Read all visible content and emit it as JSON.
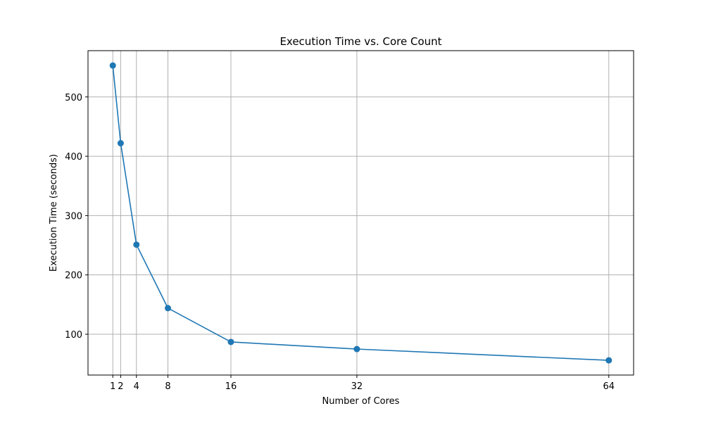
{
  "chart_data": {
    "type": "line",
    "title": "Execution Time vs. Core Count",
    "xlabel": "Number of Cores",
    "ylabel": "Execution Time (seconds)",
    "x_ticks": [
      "1",
      "2",
      "4",
      "8",
      "16",
      "32",
      "64"
    ],
    "y_ticks": [
      "100",
      "200",
      "300",
      "400",
      "500"
    ],
    "xlim": [
      -2.15,
      67.15
    ],
    "ylim": [
      31.2,
      578
    ],
    "grid": true,
    "series": [
      {
        "color": "#1f77b4",
        "marker": "circle",
        "x": [
          1,
          2,
          4,
          8,
          16,
          32,
          64
        ],
        "y": [
          553,
          422,
          251,
          144,
          87,
          75,
          56
        ]
      }
    ]
  }
}
